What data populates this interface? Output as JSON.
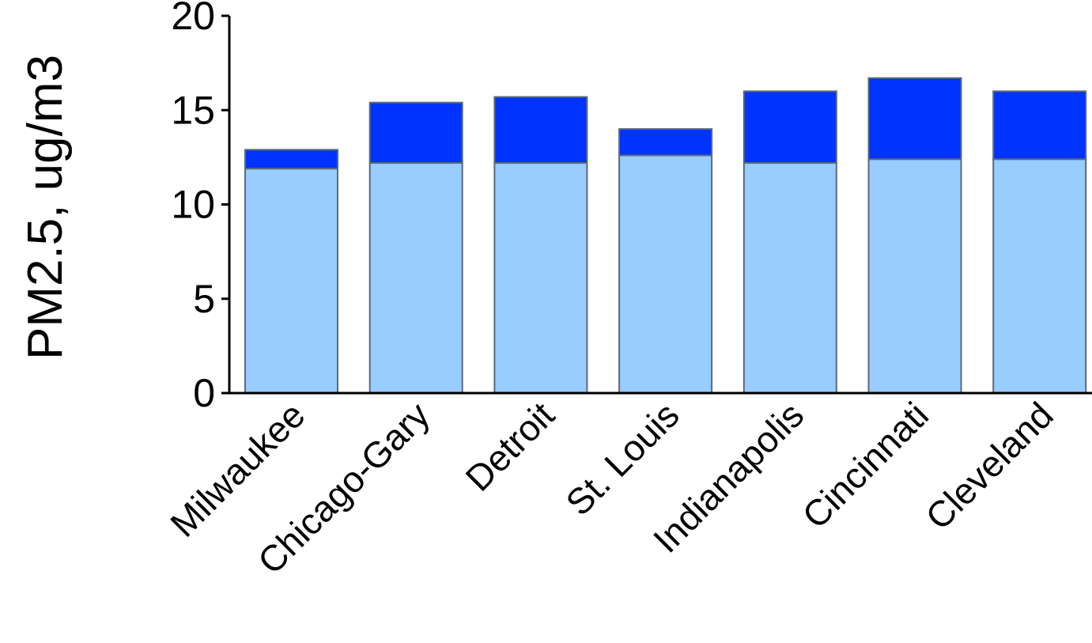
{
  "chart_data": {
    "type": "bar",
    "stacked": true,
    "ylabel": "PM2.5, ug/m3",
    "ylim": [
      0,
      20
    ],
    "yticks": [
      "0",
      "5",
      "10",
      "15",
      "20"
    ],
    "categories": [
      "Milwaukee",
      "Chicago-Gary",
      "Detroit",
      "St. Louis",
      "Indianapolis",
      "Cincinnati",
      "Cleveland"
    ],
    "series": [
      {
        "color": "#99ccff",
        "values": [
          11.9,
          12.2,
          12.2,
          12.6,
          12.2,
          12.4,
          12.4
        ]
      },
      {
        "color": "#0033ff",
        "values": [
          1.0,
          3.2,
          3.5,
          1.4,
          3.8,
          4.3,
          3.6
        ]
      }
    ],
    "grid": false
  }
}
